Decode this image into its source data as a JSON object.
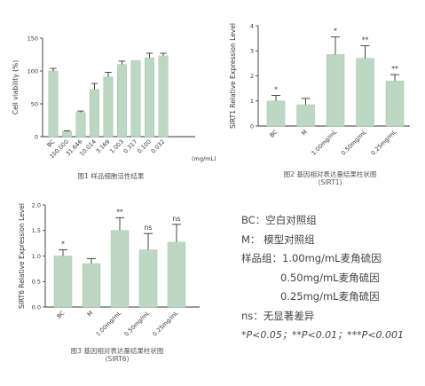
{
  "chart_data": [
    {
      "type": "bar",
      "ylabel": "Cell viability (%)",
      "xlabel": "(mg/mL)",
      "ylim": [
        0,
        150
      ],
      "yticks": [
        "0",
        "50",
        "100",
        "150"
      ],
      "categories": [
        "BC",
        "100.000",
        "31.646",
        "10.014",
        "3.169",
        "1.003",
        "0.317",
        "0.100",
        "0.032"
      ],
      "values": [
        100,
        8,
        37,
        72,
        91,
        110,
        116,
        120,
        123
      ],
      "errors": [
        4,
        1,
        2,
        9,
        7,
        5,
        0,
        7,
        4
      ],
      "caption": "图1 样品细胞活性结果"
    },
    {
      "type": "bar",
      "ylabel": "SIRT1 Relative Expression Level",
      "ylim": [
        0,
        4
      ],
      "yticks": [
        "0",
        "1",
        "2",
        "3",
        "4"
      ],
      "categories": [
        "BC",
        "M",
        "1.00mg/mL",
        "0.50mg/mL",
        "0.25mg/mL"
      ],
      "values": [
        1.0,
        0.85,
        2.85,
        2.7,
        1.8
      ],
      "errors": [
        0.22,
        0.25,
        0.7,
        0.5,
        0.25
      ],
      "significance": [
        "*",
        "",
        "*",
        "**",
        "**"
      ],
      "caption": "图2 基因相对表达量结果柱状图",
      "caption_sub": "(SIRT1)"
    },
    {
      "type": "bar",
      "ylabel": "SIRT6 Relative Expression Level",
      "ylim": [
        0,
        2.0
      ],
      "yticks": [
        "0.0",
        "0.5",
        "1.0",
        "1.5",
        "2.0"
      ],
      "categories": [
        "BC",
        "M",
        "1.00mg/mL",
        "0.50mg/mL",
        "0.25mg/mL"
      ],
      "values": [
        1.0,
        0.85,
        1.5,
        1.12,
        1.27
      ],
      "errors": [
        0.12,
        0.1,
        0.25,
        0.32,
        0.35
      ],
      "significance": [
        "*",
        "",
        "**",
        "ns",
        "ns"
      ],
      "caption": "图3 基因相对表达量结果柱状图",
      "caption_sub": "(SIRT6)"
    }
  ],
  "colors": {
    "bar": "#bcd8c3",
    "bar_stroke": "#a6c7ae",
    "axis": "#333333",
    "error": "#333333"
  },
  "legend": {
    "bc": "BC：空白对照组",
    "m": "M：  模型对照组",
    "sample1": "样品组：1.00mg/mL麦角硫因",
    "sample2": "0.50mg/mL麦角硫因",
    "sample3": "0.25mg/mL麦角硫因",
    "ns": "ns：无显著差异",
    "pvalues": "*P<0.05；**P<0.01；***P<0.001"
  }
}
